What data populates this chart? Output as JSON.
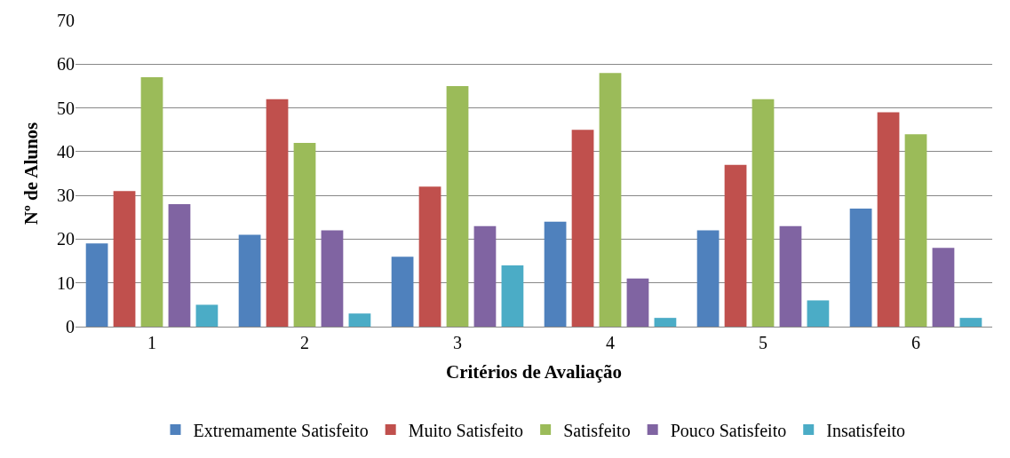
{
  "chart_data": {
    "type": "bar",
    "xlabel": "Critérios de Avaliação",
    "ylabel": "Nº de Alunos",
    "categories": [
      "1",
      "2",
      "3",
      "4",
      "5",
      "6"
    ],
    "series": [
      {
        "name": "Extremamente Satisfeito",
        "color": "#4f81bd",
        "values": [
          19,
          21,
          16,
          24,
          22,
          27
        ]
      },
      {
        "name": "Muito Satisfeito",
        "color": "#c0504d",
        "values": [
          31,
          52,
          32,
          45,
          37,
          49
        ]
      },
      {
        "name": "Satisfeito",
        "color": "#9bbb59",
        "values": [
          57,
          42,
          55,
          58,
          52,
          44
        ]
      },
      {
        "name": "Pouco Satisfeito",
        "color": "#8064a2",
        "values": [
          28,
          22,
          23,
          11,
          23,
          18
        ]
      },
      {
        "name": "Insatisfeito",
        "color": "#4bacc6",
        "values": [
          5,
          3,
          14,
          2,
          6,
          2
        ]
      }
    ],
    "ylim": [
      0,
      70
    ],
    "yticks": [
      0,
      10,
      20,
      30,
      40,
      50,
      60,
      70
    ],
    "grid": "y",
    "legend": "bottom"
  }
}
